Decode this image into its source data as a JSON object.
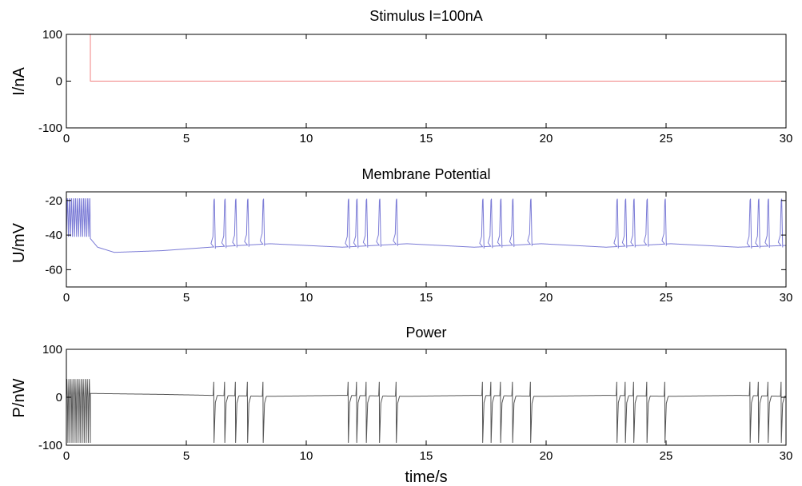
{
  "chart_data": [
    {
      "type": "line",
      "title": "Stimulus I=100nA",
      "xlabel": "",
      "ylabel": "I/nA",
      "xlim": [
        0,
        30
      ],
      "ylim": [
        -100,
        100
      ],
      "xticks": [
        0,
        5,
        10,
        15,
        20,
        25,
        30
      ],
      "yticks": [
        -100,
        0,
        100
      ],
      "line_color": "#f08080",
      "series": [
        {
          "x": [
            0,
            1.0,
            1.0,
            30
          ],
          "y": [
            100,
            100,
            0,
            0
          ]
        }
      ]
    },
    {
      "type": "line",
      "title": "Membrane Potential",
      "xlabel": "",
      "ylabel": "U/mV",
      "xlim": [
        0,
        30
      ],
      "ylim": [
        -70,
        -15
      ],
      "xticks": [
        0,
        5,
        10,
        15,
        20,
        25,
        30
      ],
      "yticks": [
        -60,
        -40,
        -20
      ],
      "line_color": "#7b7bd6",
      "tonic": {
        "t_start": 0,
        "t_end": 1.0,
        "period": 0.085,
        "peak": -19,
        "trough": -41
      },
      "rest": [
        {
          "t": 1.0,
          "v": -42
        },
        {
          "t": 1.3,
          "v": -47
        },
        {
          "t": 2.0,
          "v": -50
        },
        {
          "t": 4.0,
          "v": -49
        },
        {
          "t": 6.0,
          "v": -47
        },
        {
          "t": 8.5,
          "v": -45
        },
        {
          "t": 11.5,
          "v": -47
        },
        {
          "t": 14.2,
          "v": -45
        },
        {
          "t": 17.0,
          "v": -47
        },
        {
          "t": 19.8,
          "v": -45
        },
        {
          "t": 22.5,
          "v": -47
        },
        {
          "t": 25.2,
          "v": -45
        },
        {
          "t": 28.0,
          "v": -47
        },
        {
          "t": 30.0,
          "v": -46
        }
      ],
      "spike_peak": -20,
      "spike_times": [
        6.15,
        6.6,
        7.05,
        7.55,
        8.2,
        11.75,
        12.1,
        12.5,
        13.05,
        13.75,
        17.35,
        17.7,
        18.1,
        18.6,
        19.35,
        22.95,
        23.3,
        23.65,
        24.2,
        24.95,
        28.5,
        28.85,
        29.25,
        29.8
      ]
    },
    {
      "type": "line",
      "title": "Power",
      "xlabel": "time/s",
      "ylabel": "P/nW",
      "xlim": [
        0,
        30
      ],
      "ylim": [
        -100,
        100
      ],
      "xticks": [
        0,
        5,
        10,
        15,
        20,
        25,
        30
      ],
      "yticks": [
        -100,
        0,
        100
      ],
      "line_color": "#555555",
      "tonic": {
        "t_start": 0,
        "t_end": 1.0,
        "period": 0.085,
        "peak": 38,
        "trough": -95
      },
      "baseline": [
        {
          "t": 1.0,
          "v": 8
        },
        {
          "t": 4.0,
          "v": 6
        },
        {
          "t": 6.0,
          "v": 4
        },
        {
          "t": 8.5,
          "v": 2
        },
        {
          "t": 11.5,
          "v": 4
        },
        {
          "t": 14.2,
          "v": 2
        },
        {
          "t": 17.0,
          "v": 4
        },
        {
          "t": 19.8,
          "v": 2
        },
        {
          "t": 22.5,
          "v": 4
        },
        {
          "t": 25.2,
          "v": 2
        },
        {
          "t": 28.0,
          "v": 4
        },
        {
          "t": 30.0,
          "v": 2
        }
      ],
      "spike_max": 32,
      "spike_min": -95,
      "spike_times": [
        6.15,
        6.6,
        7.05,
        7.55,
        8.2,
        11.75,
        12.1,
        12.5,
        13.05,
        13.75,
        17.35,
        17.7,
        18.1,
        18.6,
        19.35,
        22.95,
        23.3,
        23.65,
        24.2,
        24.95,
        28.5,
        28.85,
        29.25,
        29.8
      ]
    }
  ]
}
